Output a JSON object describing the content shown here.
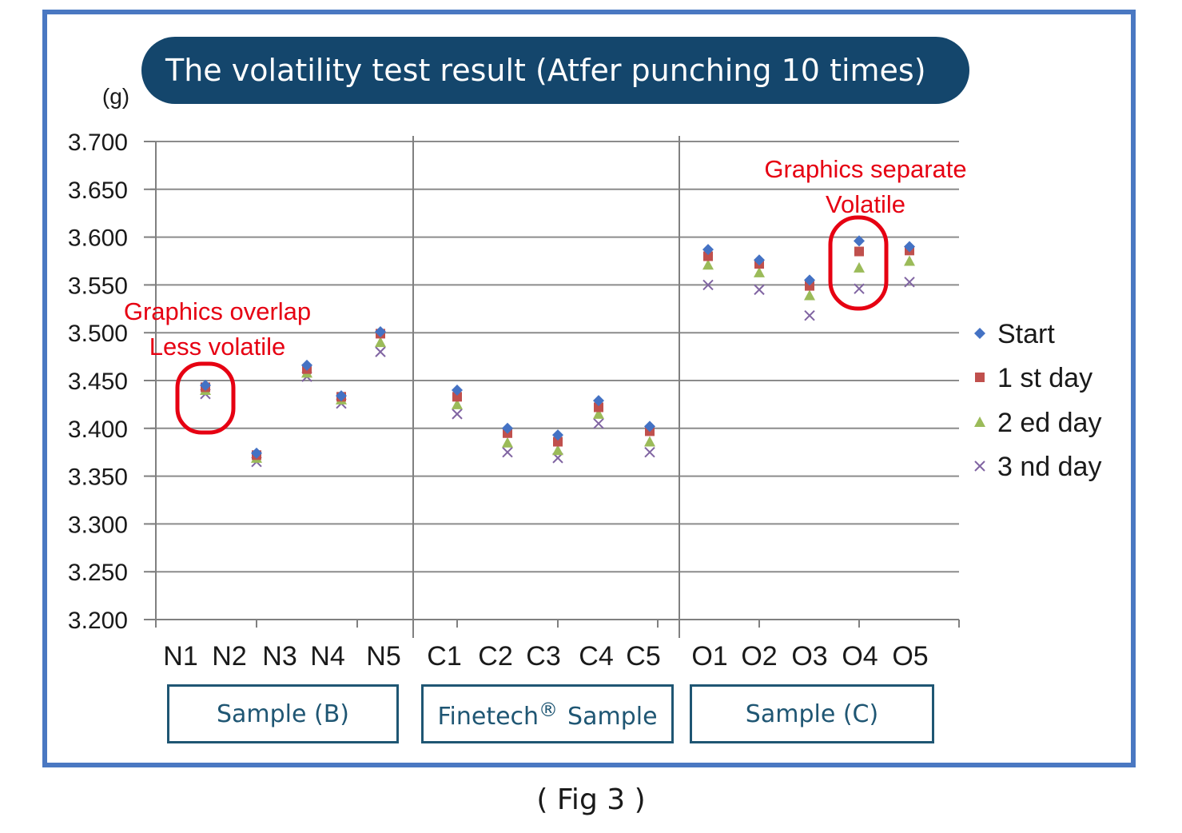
{
  "chart_data": {
    "type": "scatter",
    "title": "The volatility test result (Atfer punching 10 times)",
    "y_unit": "(g)",
    "ylim": [
      3.2,
      3.7
    ],
    "yticks": [
      "3.700",
      "3.650",
      "3.600",
      "3.550",
      "3.500",
      "3.450",
      "3.400",
      "3.350",
      "3.300",
      "3.250",
      "3.200"
    ],
    "grid": "horizontal",
    "legend_position": "right",
    "categories": [
      "N1",
      "N2",
      "N3",
      "N4",
      "N5",
      "C1",
      "C2",
      "C3",
      "C4",
      "C5",
      "O1",
      "O2",
      "O3",
      "O4",
      "O5"
    ],
    "groups": [
      {
        "label": "Sample  (B)",
        "categories": [
          "N1",
          "N2",
          "N3",
          "N4",
          "N5"
        ]
      },
      {
        "label": "Finetech",
        "label_suffix": "Sample",
        "mark": "®",
        "categories": [
          "C1",
          "C2",
          "C3",
          "C4",
          "C5"
        ]
      },
      {
        "label": "Sample  (C)",
        "categories": [
          "O1",
          "O2",
          "O3",
          "O4",
          "O5"
        ]
      }
    ],
    "series": [
      {
        "name": "Start",
        "marker": "diamond",
        "color": "#4472c4",
        "values": [
          3.445,
          3.374,
          3.466,
          3.434,
          3.501,
          3.44,
          3.4,
          3.393,
          3.429,
          3.402,
          3.587,
          3.576,
          3.555,
          3.596,
          3.59
        ]
      },
      {
        "name": "1 st day",
        "marker": "square",
        "color": "#c0504d",
        "values": [
          3.443,
          3.372,
          3.462,
          3.433,
          3.499,
          3.433,
          3.395,
          3.386,
          3.422,
          3.397,
          3.58,
          3.572,
          3.549,
          3.585,
          3.586
        ]
      },
      {
        "name": "2 ed day",
        "marker": "triangle",
        "color": "#9bbb59",
        "values": [
          3.44,
          3.369,
          3.458,
          3.43,
          3.49,
          3.425,
          3.385,
          3.377,
          3.415,
          3.386,
          3.571,
          3.563,
          3.539,
          3.568,
          3.575
        ]
      },
      {
        "name": "3 nd day",
        "marker": "x",
        "color": "#8064a2",
        "values": [
          3.436,
          3.365,
          3.454,
          3.426,
          3.48,
          3.415,
          3.375,
          3.369,
          3.405,
          3.375,
          3.55,
          3.545,
          3.518,
          3.546,
          3.553
        ]
      }
    ],
    "annotations": [
      {
        "lines": [
          "Graphics overlap",
          "Less volatile"
        ],
        "color": "#e60012",
        "target": "N1"
      },
      {
        "lines": [
          "Graphics separate",
          "Volatile"
        ],
        "color": "#e60012",
        "target": "O4"
      }
    ]
  },
  "caption": "( Fig 3 )"
}
